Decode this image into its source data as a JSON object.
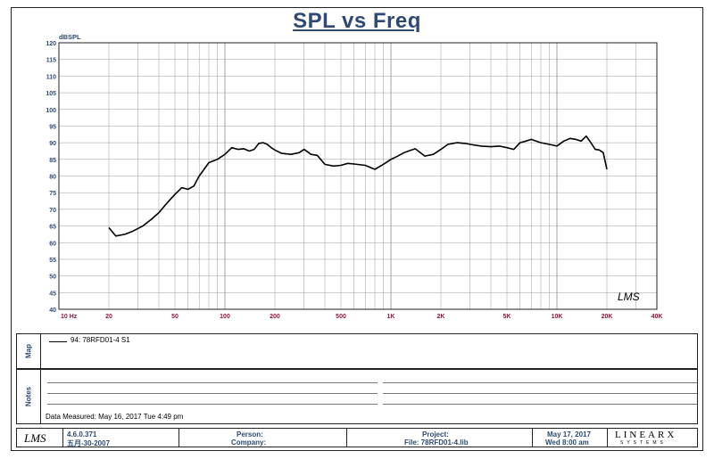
{
  "chart_data": {
    "type": "line",
    "title": "SPL vs Freq",
    "ylabel": "dBSPL",
    "xscale": "log",
    "xlim": [
      10,
      40000
    ],
    "ylim": [
      40,
      120
    ],
    "grid": true,
    "x_ticks": [
      {
        "v": 10,
        "label": "10 Hz"
      },
      {
        "v": 20,
        "label": "20"
      },
      {
        "v": 50,
        "label": "50"
      },
      {
        "v": 100,
        "label": "100"
      },
      {
        "v": 200,
        "label": "200"
      },
      {
        "v": 500,
        "label": "500"
      },
      {
        "v": 1000,
        "label": "1K"
      },
      {
        "v": 2000,
        "label": "2K"
      },
      {
        "v": 5000,
        "label": "5K"
      },
      {
        "v": 10000,
        "label": "10K"
      },
      {
        "v": 20000,
        "label": "20K"
      },
      {
        "v": 40000,
        "label": "40K"
      }
    ],
    "y_ticks": [
      "40",
      "45",
      "50",
      "55",
      "60",
      "65",
      "70",
      "75",
      "80",
      "85",
      "90",
      "95",
      "100",
      "105",
      "110",
      "115",
      "120"
    ],
    "series": [
      {
        "name": "94: 78RFD01-4 S1",
        "color": "#000000",
        "x": [
          20,
          22,
          25,
          28,
          32,
          36,
          40,
          45,
          50,
          55,
          60,
          65,
          70,
          80,
          90,
          100,
          110,
          120,
          130,
          140,
          150,
          160,
          170,
          180,
          190,
          200,
          220,
          250,
          280,
          300,
          330,
          360,
          400,
          450,
          500,
          550,
          600,
          700,
          800,
          900,
          1000,
          1100,
          1200,
          1400,
          1600,
          1800,
          2000,
          2200,
          2500,
          2800,
          3000,
          3500,
          4000,
          4500,
          5000,
          5500,
          6000,
          6500,
          7000,
          8000,
          9000,
          10000,
          11000,
          12000,
          13000,
          14000,
          15000,
          16000,
          17000,
          18000,
          19000,
          20000
        ],
        "y": [
          64.5,
          62,
          62.5,
          63.5,
          65,
          67,
          69,
          72,
          74.5,
          76.5,
          76,
          77,
          80,
          84,
          85,
          86.5,
          88.5,
          88,
          88.2,
          87.5,
          88,
          89.8,
          90,
          89.5,
          88.5,
          87.8,
          86.8,
          86.5,
          87,
          88,
          86.5,
          86.2,
          83.5,
          83,
          83.2,
          83.8,
          83.6,
          83.2,
          82,
          83.5,
          85,
          86,
          87,
          88.2,
          86,
          86.5,
          88,
          89.5,
          90,
          89.8,
          89.5,
          89,
          88.8,
          89,
          88.5,
          88,
          90,
          90.5,
          91,
          90,
          89.5,
          89,
          90.5,
          91.3,
          91,
          90.5,
          92,
          90,
          88,
          87.8,
          87,
          82
        ]
      }
    ]
  },
  "map_panel": {
    "label": "Map",
    "entry": "94: 78RFD01-4 S1"
  },
  "notes_panel": {
    "label": "Notes",
    "date_measured": "Data Measured: May 16, 2017  Tue  4:49 pm"
  },
  "footer": {
    "lms_logo": "LMS",
    "version": "4.6.0.371",
    "version_date": "五月-30-2007",
    "person": "Person:",
    "company": "Company:",
    "project": "Project:",
    "file": "File: 78RFD01-4.lib",
    "date": "May 17, 2017",
    "time": "Wed  8:00 am",
    "brand_top": "LINEARX",
    "brand_bottom": "SYSTEMS"
  },
  "chart_watermark": "LMS",
  "colors": {
    "title": "#2e4a73",
    "ytick": "#2e4a73",
    "xtick": "#8b1a3a",
    "grid": "#9a9a9a",
    "curve": "#000000"
  }
}
